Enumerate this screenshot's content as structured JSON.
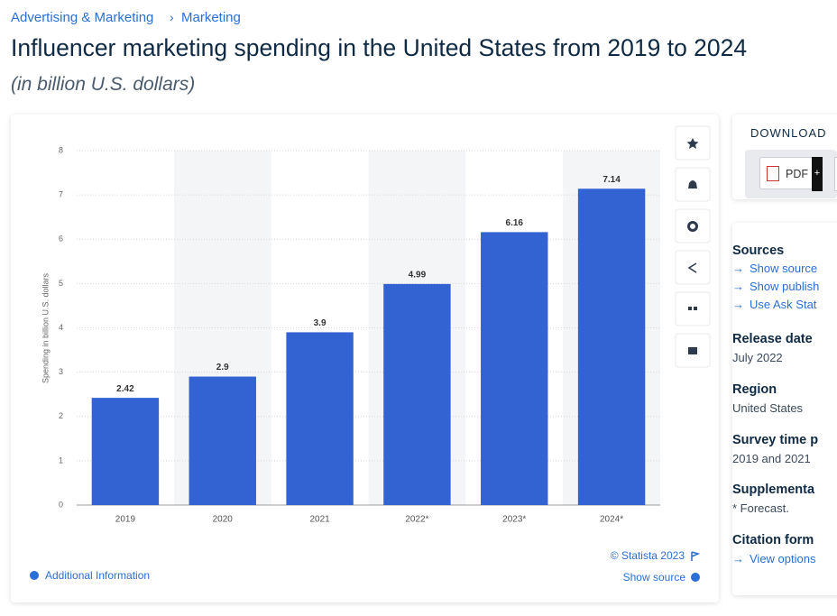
{
  "breadcrumb": [
    "Advertising & Marketing",
    "Marketing"
  ],
  "header": {
    "title": "Influencer marketing spending in the United States from 2019 to 2024",
    "subtitle": "(in billion U.S. dollars)"
  },
  "chart_data": {
    "type": "bar",
    "y_axis_label": "Spending in billion U.S. dollars",
    "categories": [
      "2019",
      "2020",
      "2021",
      "2022*",
      "2023*",
      "2024*"
    ],
    "values": [
      2.42,
      2.9,
      3.9,
      4.99,
      6.16,
      7.14
    ],
    "color": "#3363d3",
    "ylim": [
      0,
      8
    ],
    "yticks": [
      0,
      1,
      2,
      3,
      4,
      5,
      6,
      7,
      8
    ],
    "grid": true
  },
  "chart_footer": {
    "copyright": "© Statista 2023",
    "show_source": "Show source",
    "additional_information": "Additional Information"
  },
  "download": {
    "heading": "DOWNLOAD",
    "pdf": "PDF"
  },
  "details": {
    "sources": {
      "heading": "Sources",
      "links": [
        "Show source",
        "Show publish",
        "Use Ask Stat"
      ]
    },
    "release_date": {
      "heading": "Release date",
      "text": "July 2022"
    },
    "region": {
      "heading": "Region",
      "text": "United States"
    },
    "survey_time": {
      "heading": "Survey time p",
      "text": "2019 and 2021"
    },
    "supplementary": {
      "heading": "Supplementa",
      "text": "* Forecast."
    },
    "citation": {
      "heading": "Citation form",
      "link": "View options"
    }
  }
}
